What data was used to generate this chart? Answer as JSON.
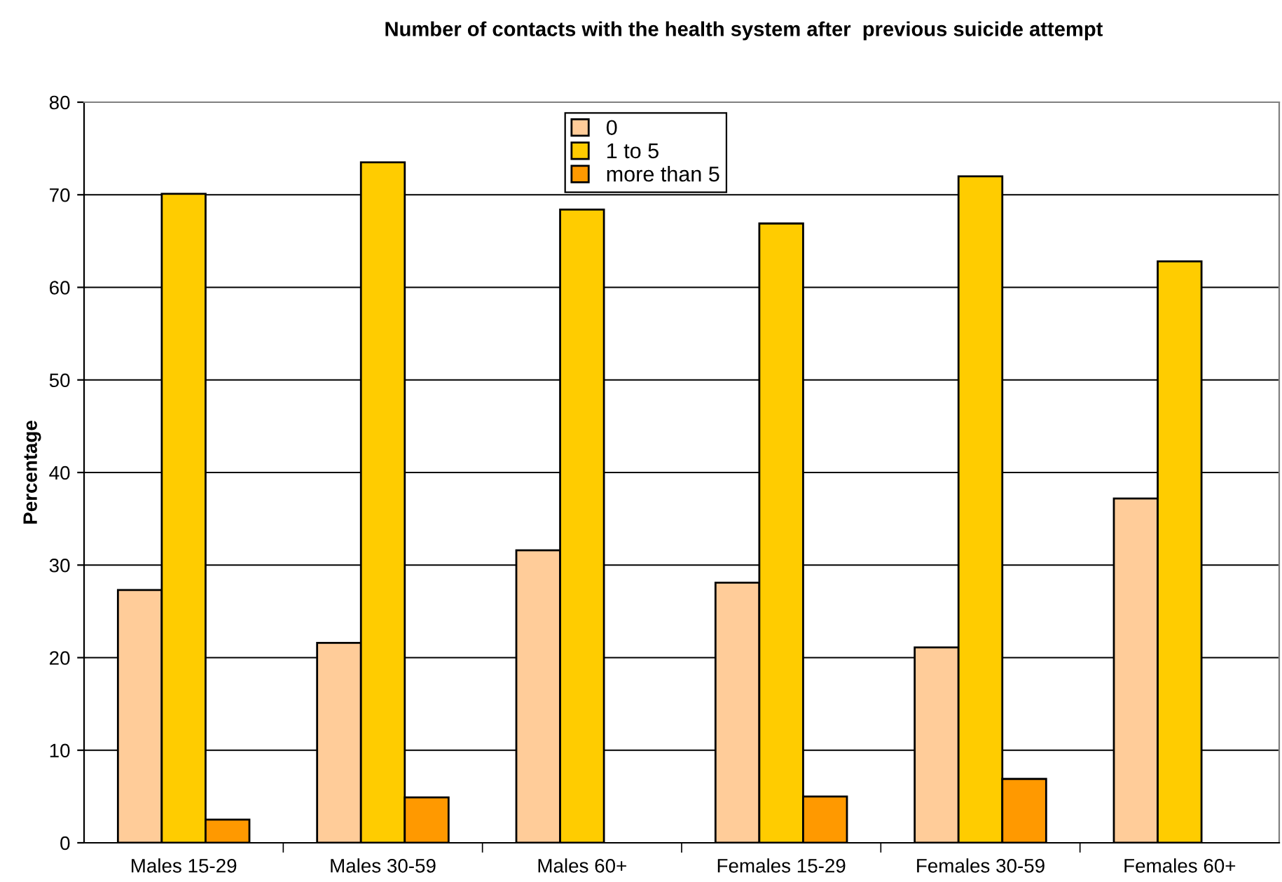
{
  "chart_data": {
    "type": "bar",
    "title": "Number of contacts with the health system after  previous suicide attempt",
    "ylabel": "Percentage",
    "categories": [
      "Males 15-29",
      "Males 30-59",
      "Males 60+",
      "Females 15-29",
      "Females 30-59",
      "Females 60+"
    ],
    "series": [
      {
        "name": "0",
        "color": "#ffcc99",
        "values": [
          27.3,
          21.6,
          31.6,
          28.1,
          21.1,
          37.2
        ]
      },
      {
        "name": "1 to 5",
        "color": "#ffcc00",
        "values": [
          70.1,
          73.5,
          68.4,
          66.9,
          72.0,
          62.8
        ]
      },
      {
        "name": "more than 5",
        "color": "#ff9900",
        "values": [
          2.5,
          4.9,
          null,
          5.0,
          6.9,
          null
        ]
      }
    ],
    "ylim": [
      0,
      80
    ],
    "yticks": [
      0,
      10,
      20,
      30,
      40,
      50,
      60,
      70,
      80
    ],
    "grid": "y",
    "legend": "top"
  }
}
